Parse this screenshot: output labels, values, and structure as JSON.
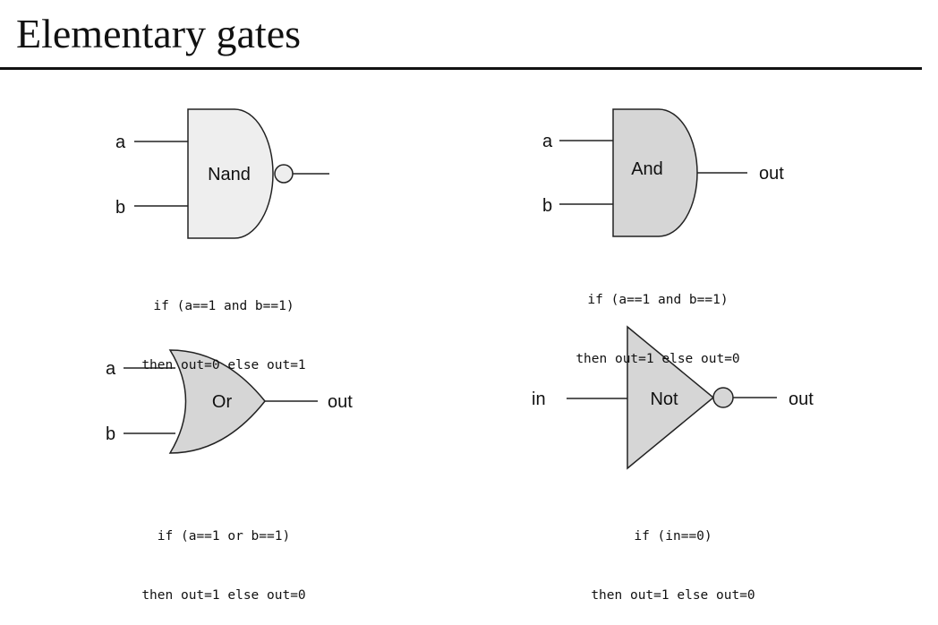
{
  "title": "Elementary gates",
  "gates": {
    "nand": {
      "name": "Nand",
      "inputs": [
        "a",
        "b"
      ],
      "rule_line1": "if (a==1 and b==1)",
      "rule_line2": "then out=0 else out=1"
    },
    "and": {
      "name": "And",
      "inputs": [
        "a",
        "b"
      ],
      "output": "out",
      "rule_line1": "if (a==1 and b==1)",
      "rule_line2": "then out=1 else out=0"
    },
    "or": {
      "name": "Or",
      "inputs": [
        "a",
        "b"
      ],
      "output": "out",
      "rule_line1": "if (a==1 or b==1)",
      "rule_line2": "then out=1 else out=0"
    },
    "not": {
      "name": "Not",
      "input": "in",
      "output": "out",
      "rule_line1": "if (in==0)",
      "rule_line2": "then out=1 else out=0"
    }
  },
  "colors": {
    "nand_fill": "#eeeeee",
    "gate_fill": "#d6d6d6",
    "stroke": "#222222"
  }
}
